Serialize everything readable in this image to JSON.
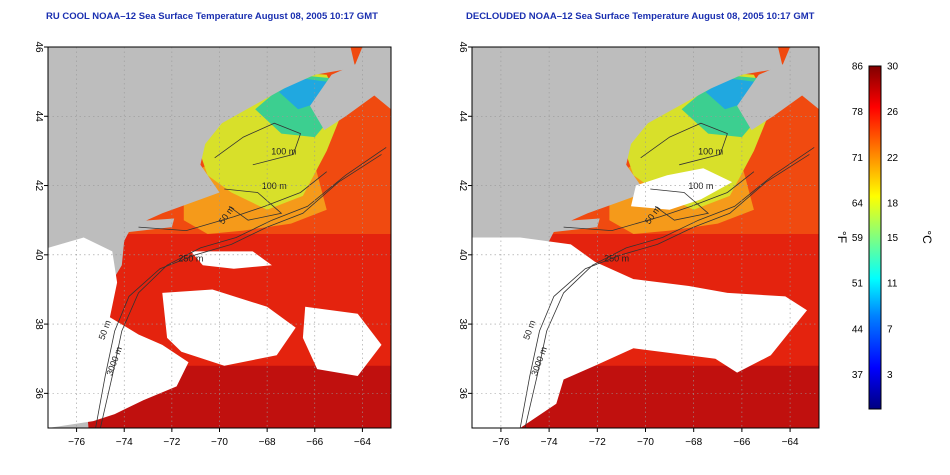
{
  "chart_data": [
    {
      "type": "heatmap",
      "title": "RU COOL NOAA–12 Sea Surface Temperature August 08, 2005 10:17 GMT",
      "xlim": [
        -77.2,
        -62.8
      ],
      "ylim": [
        35,
        46
      ],
      "xticks": [
        -76,
        -74,
        -72,
        -70,
        -68,
        -66,
        -64
      ],
      "yticks": [
        36,
        38,
        40,
        42,
        44,
        46
      ],
      "xtick_labels": [
        "−76",
        "−74",
        "−72",
        "−70",
        "−68",
        "−66",
        "−64"
      ],
      "ytick_labels": [
        "36",
        "38",
        "40",
        "42",
        "44",
        "46"
      ],
      "grid": true,
      "contour_labels": [
        "100 m",
        "100 m",
        "50 m",
        "250 m",
        "50 m",
        "3000 m"
      ]
    },
    {
      "type": "heatmap",
      "title": "DECLOUDED NOAA–12 Sea Surface Temperature August 08, 2005 10:17 GMT",
      "xlim": [
        -77.2,
        -62.8
      ],
      "ylim": [
        35,
        46
      ],
      "xticks": [
        -76,
        -74,
        -72,
        -70,
        -68,
        -66,
        -64
      ],
      "yticks": [
        36,
        38,
        40,
        42,
        44,
        46
      ],
      "xtick_labels": [
        "−76",
        "−74",
        "−72",
        "−70",
        "−68",
        "−66",
        "−64"
      ],
      "ytick_labels": [
        "36",
        "38",
        "40",
        "42",
        "44",
        "46"
      ],
      "grid": true,
      "contour_labels": [
        "100 m",
        "100 m",
        "50 m",
        "250 m",
        "50 m",
        "3000 m"
      ]
    }
  ],
  "colorbar": {
    "left_unit": "°F",
    "right_unit": "°C",
    "celsius_range": [
      0,
      30
    ],
    "fahrenheit_ticks": [
      "86",
      "78",
      "71",
      "64",
      "59",
      "51",
      "44",
      "37"
    ],
    "celsius_ticks": [
      "30",
      "26",
      "22",
      "18",
      "15",
      "11",
      "7",
      "3"
    ],
    "colors": [
      "#000080",
      "#0000ff",
      "#0080ff",
      "#00ffff",
      "#80ff80",
      "#ffff00",
      "#ff8000",
      "#ff0000",
      "#800000"
    ]
  },
  "colors": {
    "land": "#bdbdbd",
    "cloud": "#ffffff",
    "title": "#1a2fb0"
  }
}
